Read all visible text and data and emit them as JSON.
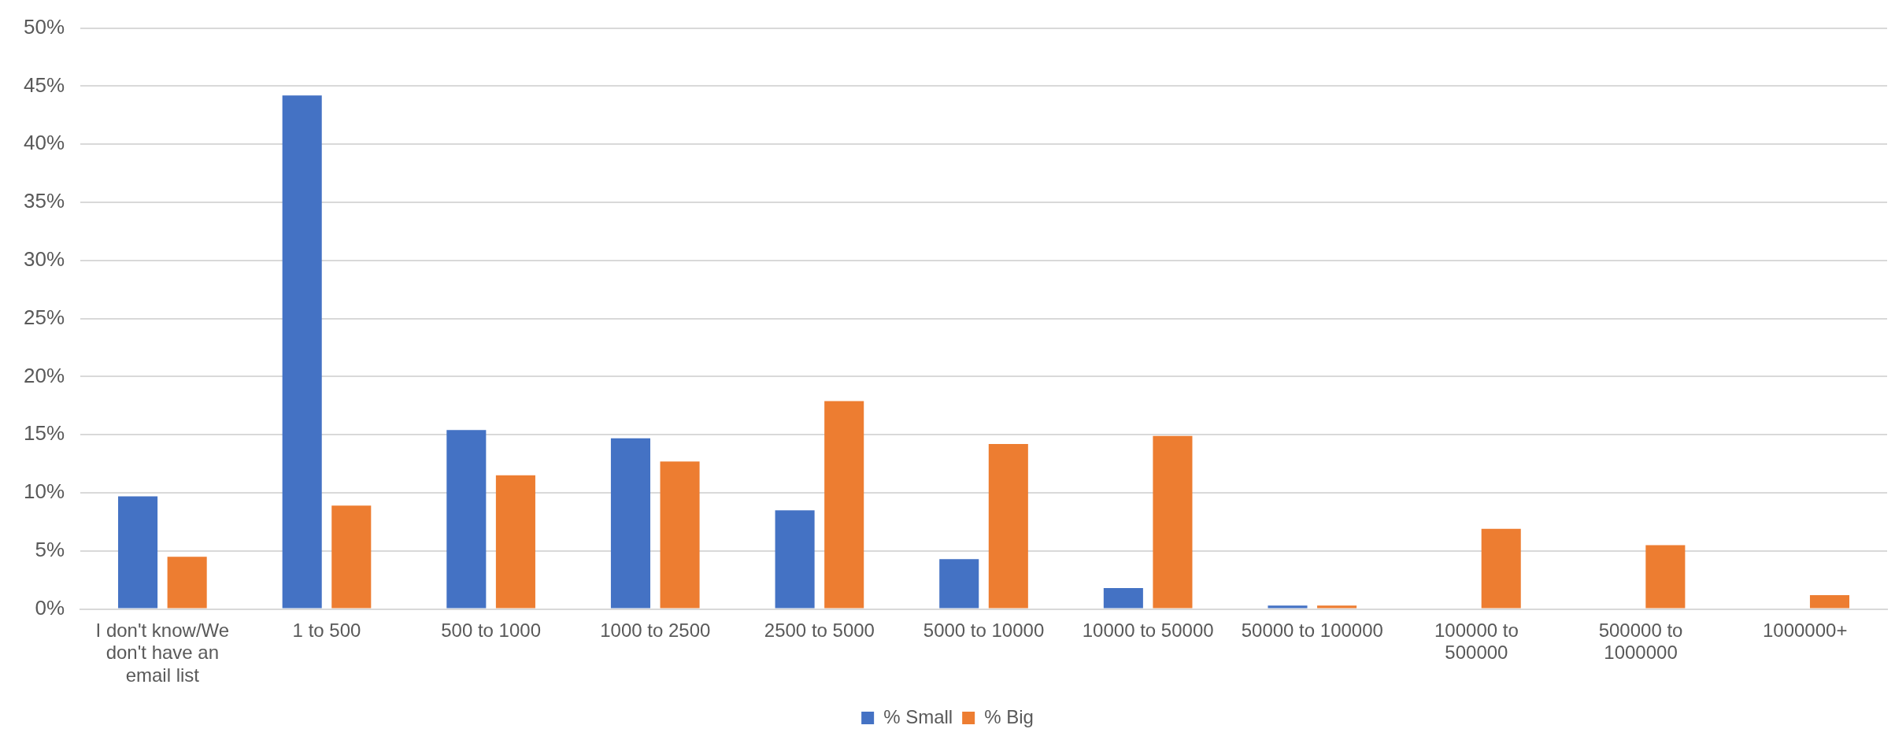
{
  "chart_data": {
    "type": "bar",
    "categories": [
      "I don't know/We don't have an email list",
      "1 to 500",
      "500 to 1000",
      "1000 to 2500",
      "2500 to 5000",
      "5000 to 10000",
      "10000 to 50000",
      "50000 to 100000",
      "100000 to 500000",
      "500000 to 1000000",
      "1000000+"
    ],
    "series": [
      {
        "name": "% Small",
        "color": "#4472c4",
        "values": [
          9.7,
          44.2,
          15.4,
          14.7,
          8.5,
          4.3,
          1.8,
          0.3,
          0,
          0,
          0
        ]
      },
      {
        "name": "% Big",
        "color": "#ed7d31",
        "values": [
          4.5,
          8.9,
          11.5,
          12.7,
          17.9,
          14.2,
          14.9,
          0.3,
          6.9,
          5.5,
          1.2
        ]
      }
    ],
    "ylim": [
      0,
      50
    ],
    "yticks": [
      {
        "value": 0,
        "label": "0%"
      },
      {
        "value": 5,
        "label": "5%"
      },
      {
        "value": 10,
        "label": "10%"
      },
      {
        "value": 15,
        "label": "15%"
      },
      {
        "value": 20,
        "label": "20%"
      },
      {
        "value": 25,
        "label": "25%"
      },
      {
        "value": 30,
        "label": "30%"
      },
      {
        "value": 35,
        "label": "35%"
      },
      {
        "value": 40,
        "label": "40%"
      },
      {
        "value": 45,
        "label": "45%"
      },
      {
        "value": 50,
        "label": "50%"
      }
    ],
    "grid": "y",
    "legend": "bottom"
  }
}
